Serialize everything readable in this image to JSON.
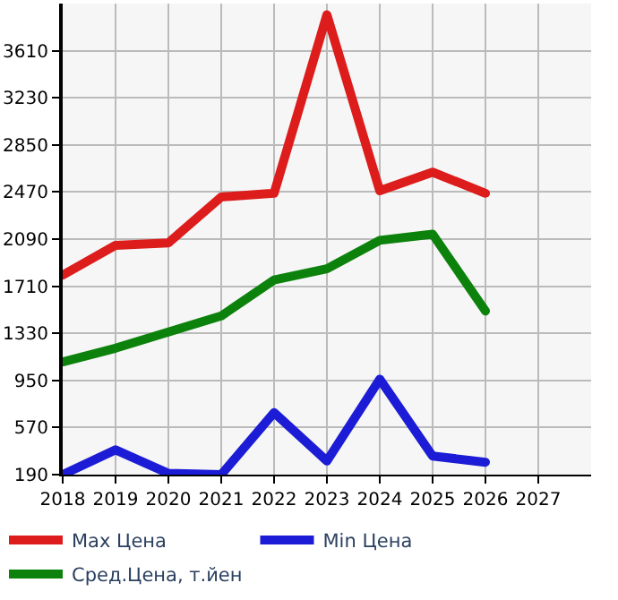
{
  "chart_data": {
    "type": "line",
    "x": [
      2018,
      2019,
      2020,
      2021,
      2022,
      2023,
      2024,
      2025,
      2026
    ],
    "series": [
      {
        "name": "Max Цена",
        "color": "#dd1c1c",
        "values": [
          1800,
          2040,
          2060,
          2430,
          2460,
          3900,
          2480,
          2630,
          2460
        ]
      },
      {
        "name": "Min Цена",
        "color": "#1c1cd6",
        "values": [
          190,
          390,
          200,
          190,
          690,
          300,
          960,
          340,
          290
        ]
      },
      {
        "name": "Сред.Цена, т.йен",
        "color": "#0c820c",
        "values": [
          1100,
          1210,
          1340,
          1470,
          1760,
          1850,
          2080,
          2130,
          1510
        ]
      }
    ],
    "xlim": [
      2018,
      2028
    ],
    "xticks": [
      2018,
      2019,
      2020,
      2021,
      2022,
      2023,
      2024,
      2025,
      2026,
      2027
    ],
    "ylim": [
      190,
      3990
    ],
    "yticks": [
      190,
      570,
      950,
      1330,
      1710,
      2090,
      2470,
      2850,
      3230,
      3610
    ],
    "grid": true,
    "legend": "bottom",
    "marker": "none",
    "line_style": "solid"
  }
}
